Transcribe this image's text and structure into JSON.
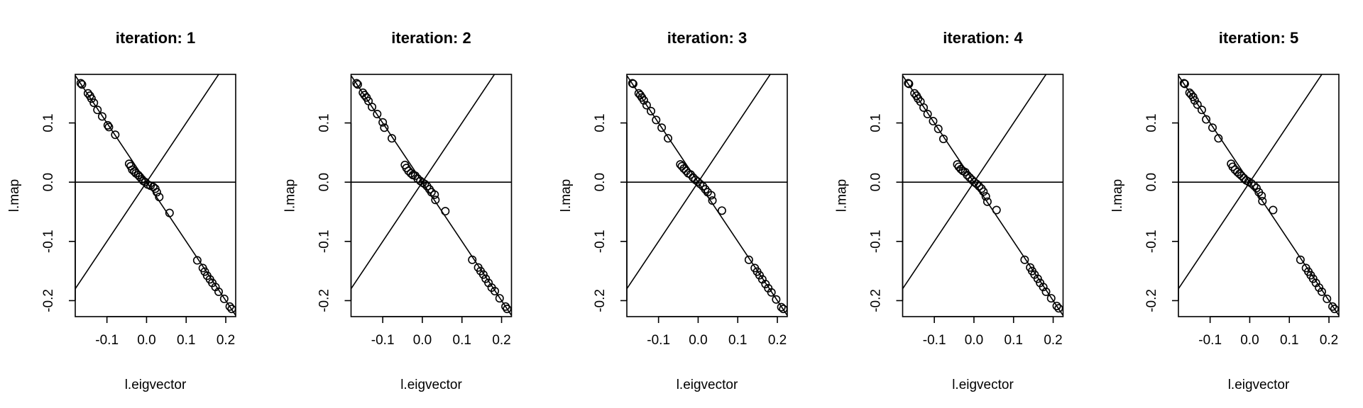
{
  "chart_data": [
    {
      "type": "scatter",
      "title": "iteration: 1",
      "xlabel": "l.eigvector",
      "ylabel": "l.map",
      "xlim": [
        -0.18,
        0.225
      ],
      "ylim": [
        -0.227,
        0.182
      ],
      "xticks": [
        -0.1,
        0.0,
        0.1,
        0.2
      ],
      "xtick_labels": [
        "-0.1",
        "0.0",
        "0.1",
        "0.2"
      ],
      "yticks": [
        -0.2,
        -0.1,
        0.0,
        0.1
      ],
      "ytick_labels": [
        "-0.2",
        "-0.1",
        "0.0",
        "0.1"
      ],
      "grid": false,
      "reference_lines": [
        {
          "type": "hline",
          "y": 0
        },
        {
          "type": "abline",
          "intercept": 0,
          "slope": -1
        },
        {
          "type": "abline",
          "intercept": 0,
          "slope": 1
        }
      ],
      "points": [
        {
          "x": -0.166,
          "y": 0.167
        },
        {
          "x": -0.163,
          "y": 0.165
        },
        {
          "x": -0.148,
          "y": 0.15
        },
        {
          "x": -0.143,
          "y": 0.146
        },
        {
          "x": -0.139,
          "y": 0.141
        },
        {
          "x": -0.133,
          "y": 0.134
        },
        {
          "x": -0.124,
          "y": 0.122
        },
        {
          "x": -0.112,
          "y": 0.111
        },
        {
          "x": -0.098,
          "y": 0.096
        },
        {
          "x": -0.095,
          "y": 0.093
        },
        {
          "x": -0.079,
          "y": 0.08
        },
        {
          "x": -0.044,
          "y": 0.031
        },
        {
          "x": -0.04,
          "y": 0.027
        },
        {
          "x": -0.036,
          "y": 0.021
        },
        {
          "x": -0.031,
          "y": 0.018
        },
        {
          "x": -0.027,
          "y": 0.015
        },
        {
          "x": -0.021,
          "y": 0.012
        },
        {
          "x": -0.017,
          "y": 0.009
        },
        {
          "x": -0.012,
          "y": 0.005
        },
        {
          "x": -0.008,
          "y": 0.002
        },
        {
          "x": -0.003,
          "y": 0.0
        },
        {
          "x": 0.003,
          "y": -0.004
        },
        {
          "x": 0.01,
          "y": -0.006
        },
        {
          "x": 0.017,
          "y": -0.008
        },
        {
          "x": 0.022,
          "y": -0.011
        },
        {
          "x": 0.026,
          "y": -0.017
        },
        {
          "x": 0.032,
          "y": -0.025
        },
        {
          "x": 0.058,
          "y": -0.052
        },
        {
          "x": 0.128,
          "y": -0.132
        },
        {
          "x": 0.142,
          "y": -0.145
        },
        {
          "x": 0.147,
          "y": -0.151
        },
        {
          "x": 0.153,
          "y": -0.158
        },
        {
          "x": 0.16,
          "y": -0.164
        },
        {
          "x": 0.166,
          "y": -0.17
        },
        {
          "x": 0.174,
          "y": -0.177
        },
        {
          "x": 0.182,
          "y": -0.185
        },
        {
          "x": 0.196,
          "y": -0.197
        },
        {
          "x": 0.21,
          "y": -0.21
        },
        {
          "x": 0.215,
          "y": -0.214
        }
      ]
    },
    {
      "type": "scatter",
      "title": "iteration: 2",
      "xlabel": "l.eigvector",
      "ylabel": "l.map",
      "xlim": [
        -0.18,
        0.225
      ],
      "ylim": [
        -0.227,
        0.182
      ],
      "xticks": [
        -0.1,
        0.0,
        0.1,
        0.2
      ],
      "xtick_labels": [
        "-0.1",
        "0.0",
        "0.1",
        "0.2"
      ],
      "yticks": [
        -0.2,
        -0.1,
        0.0,
        0.1
      ],
      "ytick_labels": [
        "-0.2",
        "-0.1",
        "0.0",
        "0.1"
      ],
      "grid": false,
      "reference_lines": [
        {
          "type": "hline",
          "y": 0
        },
        {
          "type": "abline",
          "intercept": 0,
          "slope": -1
        },
        {
          "type": "abline",
          "intercept": 0,
          "slope": 1
        }
      ],
      "points": [
        {
          "x": -0.166,
          "y": 0.167
        },
        {
          "x": -0.163,
          "y": 0.165
        },
        {
          "x": -0.15,
          "y": 0.151
        },
        {
          "x": -0.146,
          "y": 0.147
        },
        {
          "x": -0.141,
          "y": 0.143
        },
        {
          "x": -0.136,
          "y": 0.137
        },
        {
          "x": -0.127,
          "y": 0.127
        },
        {
          "x": -0.114,
          "y": 0.115
        },
        {
          "x": -0.1,
          "y": 0.101
        },
        {
          "x": -0.096,
          "y": 0.092
        },
        {
          "x": -0.077,
          "y": 0.074
        },
        {
          "x": -0.044,
          "y": 0.029
        },
        {
          "x": -0.04,
          "y": 0.024
        },
        {
          "x": -0.035,
          "y": 0.019
        },
        {
          "x": -0.029,
          "y": 0.015
        },
        {
          "x": -0.024,
          "y": 0.012
        },
        {
          "x": -0.018,
          "y": 0.011
        },
        {
          "x": -0.012,
          "y": 0.006
        },
        {
          "x": -0.005,
          "y": 0.002
        },
        {
          "x": 0.001,
          "y": -0.001
        },
        {
          "x": 0.006,
          "y": -0.003
        },
        {
          "x": 0.012,
          "y": -0.007
        },
        {
          "x": 0.018,
          "y": -0.012
        },
        {
          "x": 0.023,
          "y": -0.017
        },
        {
          "x": 0.031,
          "y": -0.021
        },
        {
          "x": 0.033,
          "y": -0.03
        },
        {
          "x": 0.058,
          "y": -0.049
        },
        {
          "x": 0.126,
          "y": -0.131
        },
        {
          "x": 0.141,
          "y": -0.144
        },
        {
          "x": 0.147,
          "y": -0.15
        },
        {
          "x": 0.154,
          "y": -0.156
        },
        {
          "x": 0.16,
          "y": -0.163
        },
        {
          "x": 0.167,
          "y": -0.17
        },
        {
          "x": 0.175,
          "y": -0.178
        },
        {
          "x": 0.183,
          "y": -0.184
        },
        {
          "x": 0.195,
          "y": -0.196
        },
        {
          "x": 0.21,
          "y": -0.21
        },
        {
          "x": 0.214,
          "y": -0.214
        }
      ]
    },
    {
      "type": "scatter",
      "title": "iteration: 3",
      "xlabel": "l.eigvector",
      "ylabel": "l.map",
      "xlim": [
        -0.18,
        0.225
      ],
      "ylim": [
        -0.227,
        0.182
      ],
      "xticks": [
        -0.1,
        0.0,
        0.1,
        0.2
      ],
      "xtick_labels": [
        "-0.1",
        "0.0",
        "0.1",
        "0.2"
      ],
      "yticks": [
        -0.2,
        -0.1,
        0.0,
        0.1
      ],
      "ytick_labels": [
        "-0.2",
        "-0.1",
        "0.0",
        "0.1"
      ],
      "grid": false,
      "reference_lines": [
        {
          "type": "hline",
          "y": 0
        },
        {
          "type": "abline",
          "intercept": 0,
          "slope": -1
        },
        {
          "type": "abline",
          "intercept": 0,
          "slope": 1
        }
      ],
      "points": [
        {
          "x": -0.166,
          "y": 0.167
        },
        {
          "x": -0.164,
          "y": 0.166
        },
        {
          "x": -0.15,
          "y": 0.15
        },
        {
          "x": -0.146,
          "y": 0.147
        },
        {
          "x": -0.142,
          "y": 0.143
        },
        {
          "x": -0.137,
          "y": 0.138
        },
        {
          "x": -0.13,
          "y": 0.13
        },
        {
          "x": -0.119,
          "y": 0.12
        },
        {
          "x": -0.106,
          "y": 0.105
        },
        {
          "x": -0.092,
          "y": 0.092
        },
        {
          "x": -0.076,
          "y": 0.074
        },
        {
          "x": -0.045,
          "y": 0.03
        },
        {
          "x": -0.041,
          "y": 0.027
        },
        {
          "x": -0.036,
          "y": 0.023
        },
        {
          "x": -0.03,
          "y": 0.019
        },
        {
          "x": -0.025,
          "y": 0.015
        },
        {
          "x": -0.019,
          "y": 0.013
        },
        {
          "x": -0.013,
          "y": 0.008
        },
        {
          "x": -0.007,
          "y": 0.004
        },
        {
          "x": -0.001,
          "y": 0.001
        },
        {
          "x": 0.005,
          "y": -0.003
        },
        {
          "x": 0.012,
          "y": -0.007
        },
        {
          "x": 0.018,
          "y": -0.012
        },
        {
          "x": 0.024,
          "y": -0.017
        },
        {
          "x": 0.033,
          "y": -0.022
        },
        {
          "x": 0.036,
          "y": -0.031
        },
        {
          "x": 0.06,
          "y": -0.048
        },
        {
          "x": 0.128,
          "y": -0.131
        },
        {
          "x": 0.143,
          "y": -0.145
        },
        {
          "x": 0.149,
          "y": -0.151
        },
        {
          "x": 0.155,
          "y": -0.157
        },
        {
          "x": 0.162,
          "y": -0.164
        },
        {
          "x": 0.17,
          "y": -0.172
        },
        {
          "x": 0.177,
          "y": -0.179
        },
        {
          "x": 0.185,
          "y": -0.186
        },
        {
          "x": 0.197,
          "y": -0.198
        },
        {
          "x": 0.21,
          "y": -0.211
        },
        {
          "x": 0.215,
          "y": -0.214
        }
      ]
    },
    {
      "type": "scatter",
      "title": "iteration: 4",
      "xlabel": "l.eigvector",
      "ylabel": "l.map",
      "xlim": [
        -0.18,
        0.225
      ],
      "ylim": [
        -0.227,
        0.182
      ],
      "xticks": [
        -0.1,
        0.0,
        0.1,
        0.2
      ],
      "xtick_labels": [
        "-0.1",
        "0.0",
        "0.1",
        "0.2"
      ],
      "yticks": [
        -0.2,
        -0.1,
        0.0,
        0.1
      ],
      "ytick_labels": [
        "-0.2",
        "-0.1",
        "0.0",
        "0.1"
      ],
      "grid": false,
      "reference_lines": [
        {
          "type": "hline",
          "y": 0
        },
        {
          "type": "abline",
          "intercept": 0,
          "slope": -1
        },
        {
          "type": "abline",
          "intercept": 0,
          "slope": 1
        }
      ],
      "points": [
        {
          "x": -0.166,
          "y": 0.167
        },
        {
          "x": -0.164,
          "y": 0.166
        },
        {
          "x": -0.15,
          "y": 0.15
        },
        {
          "x": -0.145,
          "y": 0.146
        },
        {
          "x": -0.141,
          "y": 0.141
        },
        {
          "x": -0.135,
          "y": 0.136
        },
        {
          "x": -0.127,
          "y": 0.126
        },
        {
          "x": -0.117,
          "y": 0.115
        },
        {
          "x": -0.103,
          "y": 0.103
        },
        {
          "x": -0.09,
          "y": 0.09
        },
        {
          "x": -0.077,
          "y": 0.073
        },
        {
          "x": -0.042,
          "y": 0.03
        },
        {
          "x": -0.038,
          "y": 0.026
        },
        {
          "x": -0.033,
          "y": 0.022
        },
        {
          "x": -0.028,
          "y": 0.019
        },
        {
          "x": -0.022,
          "y": 0.017
        },
        {
          "x": -0.017,
          "y": 0.012
        },
        {
          "x": -0.011,
          "y": 0.008
        },
        {
          "x": -0.005,
          "y": 0.004
        },
        {
          "x": 0.001,
          "y": 0.0
        },
        {
          "x": 0.007,
          "y": -0.003
        },
        {
          "x": 0.013,
          "y": -0.007
        },
        {
          "x": 0.019,
          "y": -0.011
        },
        {
          "x": 0.024,
          "y": -0.016
        },
        {
          "x": 0.03,
          "y": -0.024
        },
        {
          "x": 0.034,
          "y": -0.033
        },
        {
          "x": 0.057,
          "y": -0.047
        },
        {
          "x": 0.128,
          "y": -0.131
        },
        {
          "x": 0.142,
          "y": -0.144
        },
        {
          "x": 0.147,
          "y": -0.15
        },
        {
          "x": 0.153,
          "y": -0.156
        },
        {
          "x": 0.161,
          "y": -0.163
        },
        {
          "x": 0.167,
          "y": -0.17
        },
        {
          "x": 0.175,
          "y": -0.177
        },
        {
          "x": 0.182,
          "y": -0.185
        },
        {
          "x": 0.195,
          "y": -0.196
        },
        {
          "x": 0.209,
          "y": -0.209
        },
        {
          "x": 0.214,
          "y": -0.213
        }
      ]
    },
    {
      "type": "scatter",
      "title": "iteration: 5",
      "xlabel": "l.eigvector",
      "ylabel": "l.map",
      "xlim": [
        -0.18,
        0.225
      ],
      "ylim": [
        -0.227,
        0.182
      ],
      "xticks": [
        -0.1,
        0.0,
        0.1,
        0.2
      ],
      "xtick_labels": [
        "-0.1",
        "0.0",
        "0.1",
        "0.2"
      ],
      "yticks": [
        -0.2,
        -0.1,
        0.0,
        0.1
      ],
      "ytick_labels": [
        "-0.2",
        "-0.1",
        "0.0",
        "0.1"
      ],
      "grid": false,
      "reference_lines": [
        {
          "type": "hline",
          "y": 0
        },
        {
          "type": "abline",
          "intercept": 0,
          "slope": -1
        },
        {
          "type": "abline",
          "intercept": 0,
          "slope": 1
        }
      ],
      "points": [
        {
          "x": -0.166,
          "y": 0.167
        },
        {
          "x": -0.164,
          "y": 0.166
        },
        {
          "x": -0.152,
          "y": 0.151
        },
        {
          "x": -0.148,
          "y": 0.148
        },
        {
          "x": -0.143,
          "y": 0.144
        },
        {
          "x": -0.139,
          "y": 0.138
        },
        {
          "x": -0.132,
          "y": 0.131
        },
        {
          "x": -0.121,
          "y": 0.122
        },
        {
          "x": -0.11,
          "y": 0.106
        },
        {
          "x": -0.094,
          "y": 0.092
        },
        {
          "x": -0.079,
          "y": 0.074
        },
        {
          "x": -0.047,
          "y": 0.031
        },
        {
          "x": -0.043,
          "y": 0.026
        },
        {
          "x": -0.037,
          "y": 0.021
        },
        {
          "x": -0.031,
          "y": 0.017
        },
        {
          "x": -0.026,
          "y": 0.014
        },
        {
          "x": -0.021,
          "y": 0.011
        },
        {
          "x": -0.015,
          "y": 0.007
        },
        {
          "x": -0.009,
          "y": 0.003
        },
        {
          "x": -0.003,
          "y": 0.001
        },
        {
          "x": 0.004,
          "y": -0.002
        },
        {
          "x": 0.011,
          "y": -0.006
        },
        {
          "x": 0.017,
          "y": -0.01
        },
        {
          "x": 0.023,
          "y": -0.017
        },
        {
          "x": 0.03,
          "y": -0.023
        },
        {
          "x": 0.032,
          "y": -0.032
        },
        {
          "x": 0.059,
          "y": -0.047
        },
        {
          "x": 0.128,
          "y": -0.131
        },
        {
          "x": 0.142,
          "y": -0.145
        },
        {
          "x": 0.148,
          "y": -0.151
        },
        {
          "x": 0.154,
          "y": -0.157
        },
        {
          "x": 0.16,
          "y": -0.163
        },
        {
          "x": 0.167,
          "y": -0.17
        },
        {
          "x": 0.175,
          "y": -0.178
        },
        {
          "x": 0.182,
          "y": -0.185
        },
        {
          "x": 0.195,
          "y": -0.197
        },
        {
          "x": 0.209,
          "y": -0.21
        },
        {
          "x": 0.214,
          "y": -0.214
        }
      ]
    }
  ]
}
